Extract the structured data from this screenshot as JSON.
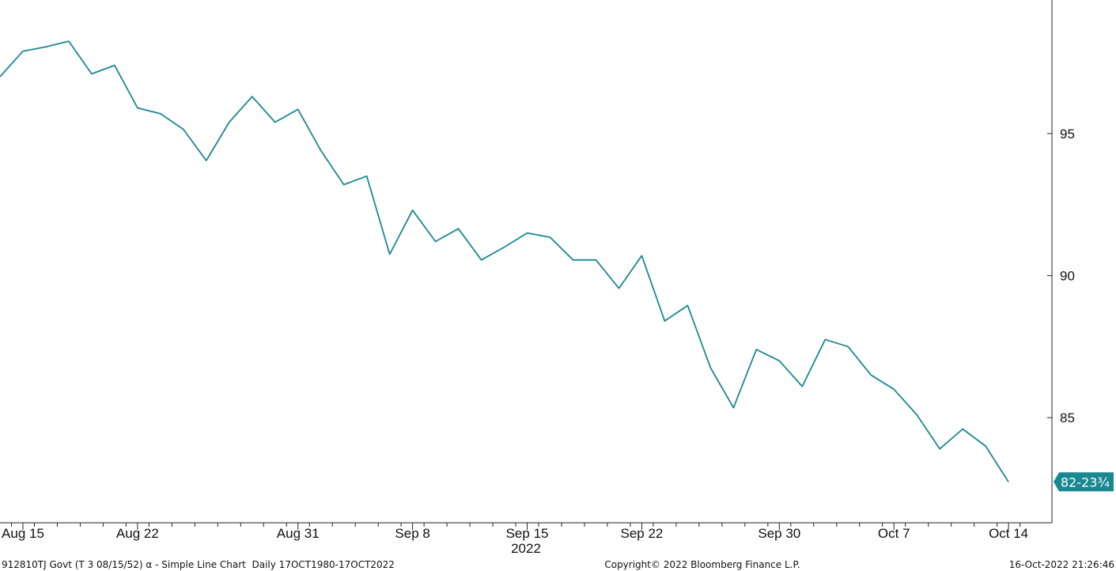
{
  "chart_data": {
    "type": "line",
    "title": "",
    "xlabel": "",
    "ylabel": "",
    "year_label": "2022",
    "x": [
      "2022-08-12",
      "2022-08-15",
      "2022-08-16",
      "2022-08-17",
      "2022-08-18",
      "2022-08-19",
      "2022-08-22",
      "2022-08-23",
      "2022-08-24",
      "2022-08-25",
      "2022-08-26",
      "2022-08-29",
      "2022-08-30",
      "2022-08-31",
      "2022-09-01",
      "2022-09-02",
      "2022-09-06",
      "2022-09-07",
      "2022-09-08",
      "2022-09-09",
      "2022-09-12",
      "2022-09-13",
      "2022-09-14",
      "2022-09-15",
      "2022-09-16",
      "2022-09-19",
      "2022-09-20",
      "2022-09-21",
      "2022-09-22",
      "2022-09-23",
      "2022-09-26",
      "2022-09-27",
      "2022-09-28",
      "2022-09-29",
      "2022-09-30",
      "2022-10-03",
      "2022-10-04",
      "2022-10-05",
      "2022-10-06",
      "2022-10-07",
      "2022-10-10",
      "2022-10-11",
      "2022-10-12",
      "2022-10-13",
      "2022-10-14"
    ],
    "series": [
      {
        "color": "#1a8891",
        "values": [
          97.0,
          97.9,
          98.05,
          98.25,
          97.1,
          97.4,
          95.9,
          95.7,
          95.15,
          94.05,
          95.4,
          96.3,
          95.4,
          95.85,
          94.4,
          93.2,
          93.5,
          90.75,
          92.3,
          91.2,
          91.65,
          90.55,
          91.0,
          91.5,
          91.35,
          90.55,
          90.55,
          89.55,
          90.7,
          88.4,
          88.95,
          86.75,
          85.35,
          87.4,
          87.0,
          86.1,
          87.75,
          87.5,
          86.5,
          86.0,
          85.1,
          83.9,
          84.6,
          84.0,
          82.74
        ]
      }
    ],
    "x_ticks": [
      {
        "date": "2022-08-15",
        "label": "Aug 15"
      },
      {
        "date": "2022-08-22",
        "label": "Aug 22"
      },
      {
        "date": "2022-08-31",
        "label": "Aug 31"
      },
      {
        "date": "2022-09-08",
        "label": "Sep 8"
      },
      {
        "date": "2022-09-15",
        "label": "Sep 15"
      },
      {
        "date": "2022-09-22",
        "label": "Sep 22"
      },
      {
        "date": "2022-09-30",
        "label": "Sep 30"
      },
      {
        "date": "2022-10-07",
        "label": "Oct 7"
      },
      {
        "date": "2022-10-14",
        "label": "Oct 14"
      }
    ],
    "y_ticks": [
      85,
      90,
      95
    ],
    "ylim": [
      81.3,
      99.7
    ],
    "y_axis_position": "right",
    "grid": false,
    "last_value_label": "82-23¾"
  },
  "footer": {
    "left": "912810TJ Govt (T 3 08/15/52) α - Simple Line Chart  Daily 17OCT1980-17OCT2022",
    "center": "Copyright© 2022 Bloomberg Finance L.P.",
    "right": "16-Oct-2022 21:26:46"
  }
}
